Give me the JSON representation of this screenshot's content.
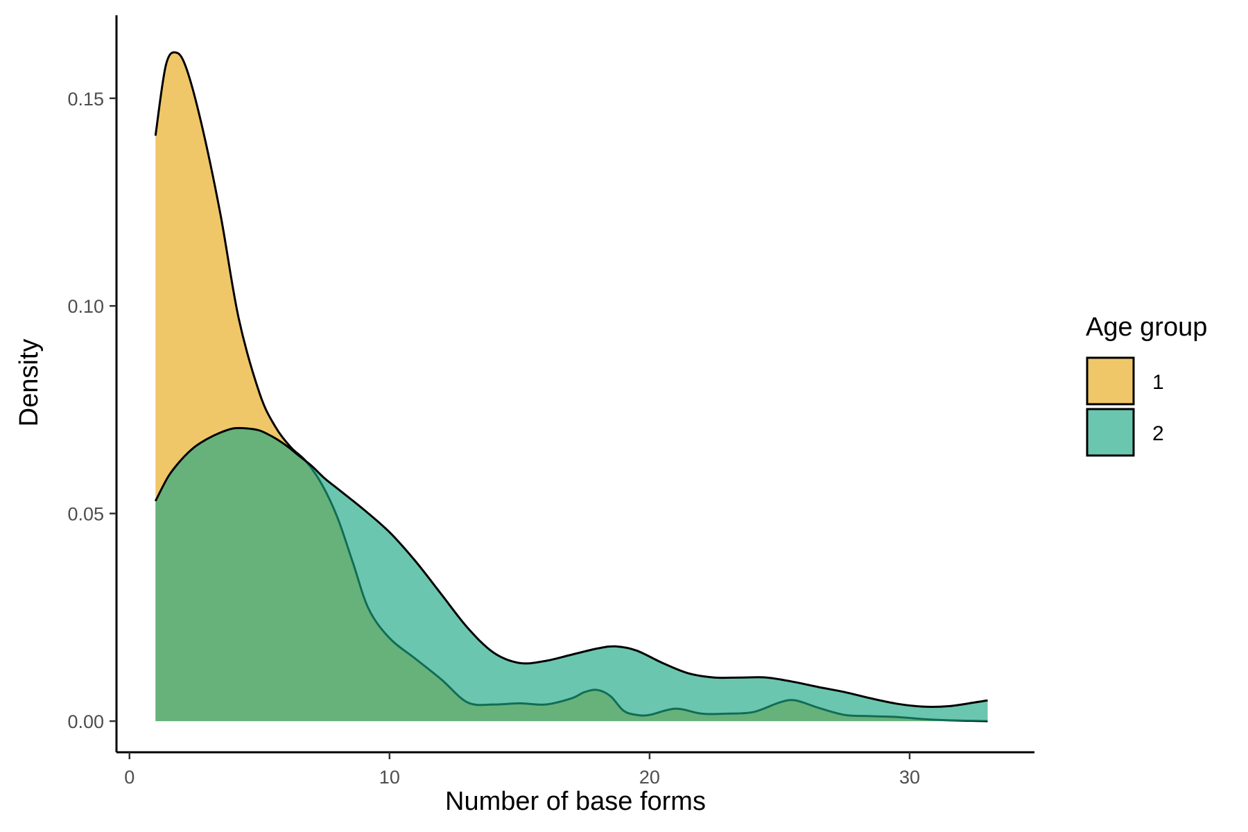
{
  "chart_data": {
    "type": "area",
    "title": "",
    "xlabel": "Number of base forms",
    "ylabel": "Density",
    "xlim": [
      -0.5,
      34.8
    ],
    "ylim": [
      -0.0075,
      0.17
    ],
    "x_ticks": [
      0,
      10,
      20,
      30
    ],
    "x_tick_labels": [
      "0",
      "10",
      "20",
      "30"
    ],
    "y_ticks": [
      0.0,
      0.05,
      0.1,
      0.15
    ],
    "y_tick_labels": [
      "0.00",
      "0.05",
      "0.10",
      "0.15"
    ],
    "grid": false,
    "legend": {
      "title": "Age group",
      "position": "right",
      "entries": [
        {
          "label": "1",
          "color": "#E8A917"
        },
        {
          "label": "2",
          "color": "#1BA784"
        }
      ]
    },
    "series": [
      {
        "name": "1",
        "color": "#E8A917",
        "fill_opacity": 0.65,
        "x": [
          1.0,
          1.4,
          1.8,
          2.2,
          2.8,
          3.5,
          4.2,
          5.0,
          5.6,
          6.2,
          6.8,
          7.4,
          8.0,
          8.6,
          9.2,
          10.0,
          11.0,
          12.0,
          13.0,
          14.0,
          15.0,
          16.0,
          17.0,
          17.5,
          18.0,
          18.5,
          19.0,
          19.5,
          20.0,
          21.0,
          22.0,
          23.0,
          24.0,
          25.0,
          25.6,
          26.5,
          27.5,
          28.5,
          29.5,
          30.5,
          31.5,
          33.0
        ],
        "y": [
          0.141,
          0.158,
          0.161,
          0.157,
          0.143,
          0.122,
          0.097,
          0.079,
          0.071,
          0.066,
          0.0625,
          0.057,
          0.049,
          0.038,
          0.027,
          0.02,
          0.015,
          0.01,
          0.0045,
          0.004,
          0.0043,
          0.004,
          0.0055,
          0.007,
          0.0075,
          0.006,
          0.0025,
          0.0015,
          0.0015,
          0.003,
          0.0018,
          0.0018,
          0.0022,
          0.0045,
          0.005,
          0.0032,
          0.0015,
          0.0012,
          0.001,
          0.0005,
          0.0002,
          0.0
        ]
      },
      {
        "name": "2",
        "color": "#1BA784",
        "fill_opacity": 0.65,
        "x": [
          1.0,
          1.5,
          2.0,
          2.5,
          3.0,
          3.5,
          4.0,
          4.5,
          5.0,
          5.5,
          6.0,
          6.5,
          7.0,
          7.5,
          8.0,
          9.0,
          10.0,
          11.0,
          12.0,
          13.0,
          14.0,
          15.0,
          16.0,
          17.0,
          18.0,
          18.7,
          19.5,
          20.5,
          21.5,
          22.5,
          23.5,
          24.5,
          25.5,
          26.5,
          27.5,
          28.5,
          29.5,
          30.5,
          31.5,
          32.5,
          33.0
        ],
        "y": [
          0.053,
          0.059,
          0.063,
          0.066,
          0.068,
          0.0695,
          0.0705,
          0.0705,
          0.07,
          0.0685,
          0.0665,
          0.064,
          0.0615,
          0.0585,
          0.056,
          0.051,
          0.0455,
          0.0385,
          0.0305,
          0.0225,
          0.0165,
          0.014,
          0.0145,
          0.016,
          0.0175,
          0.018,
          0.017,
          0.014,
          0.0115,
          0.0105,
          0.0105,
          0.0105,
          0.0095,
          0.0082,
          0.007,
          0.0055,
          0.0042,
          0.0035,
          0.0036,
          0.0045,
          0.005
        ]
      }
    ]
  }
}
